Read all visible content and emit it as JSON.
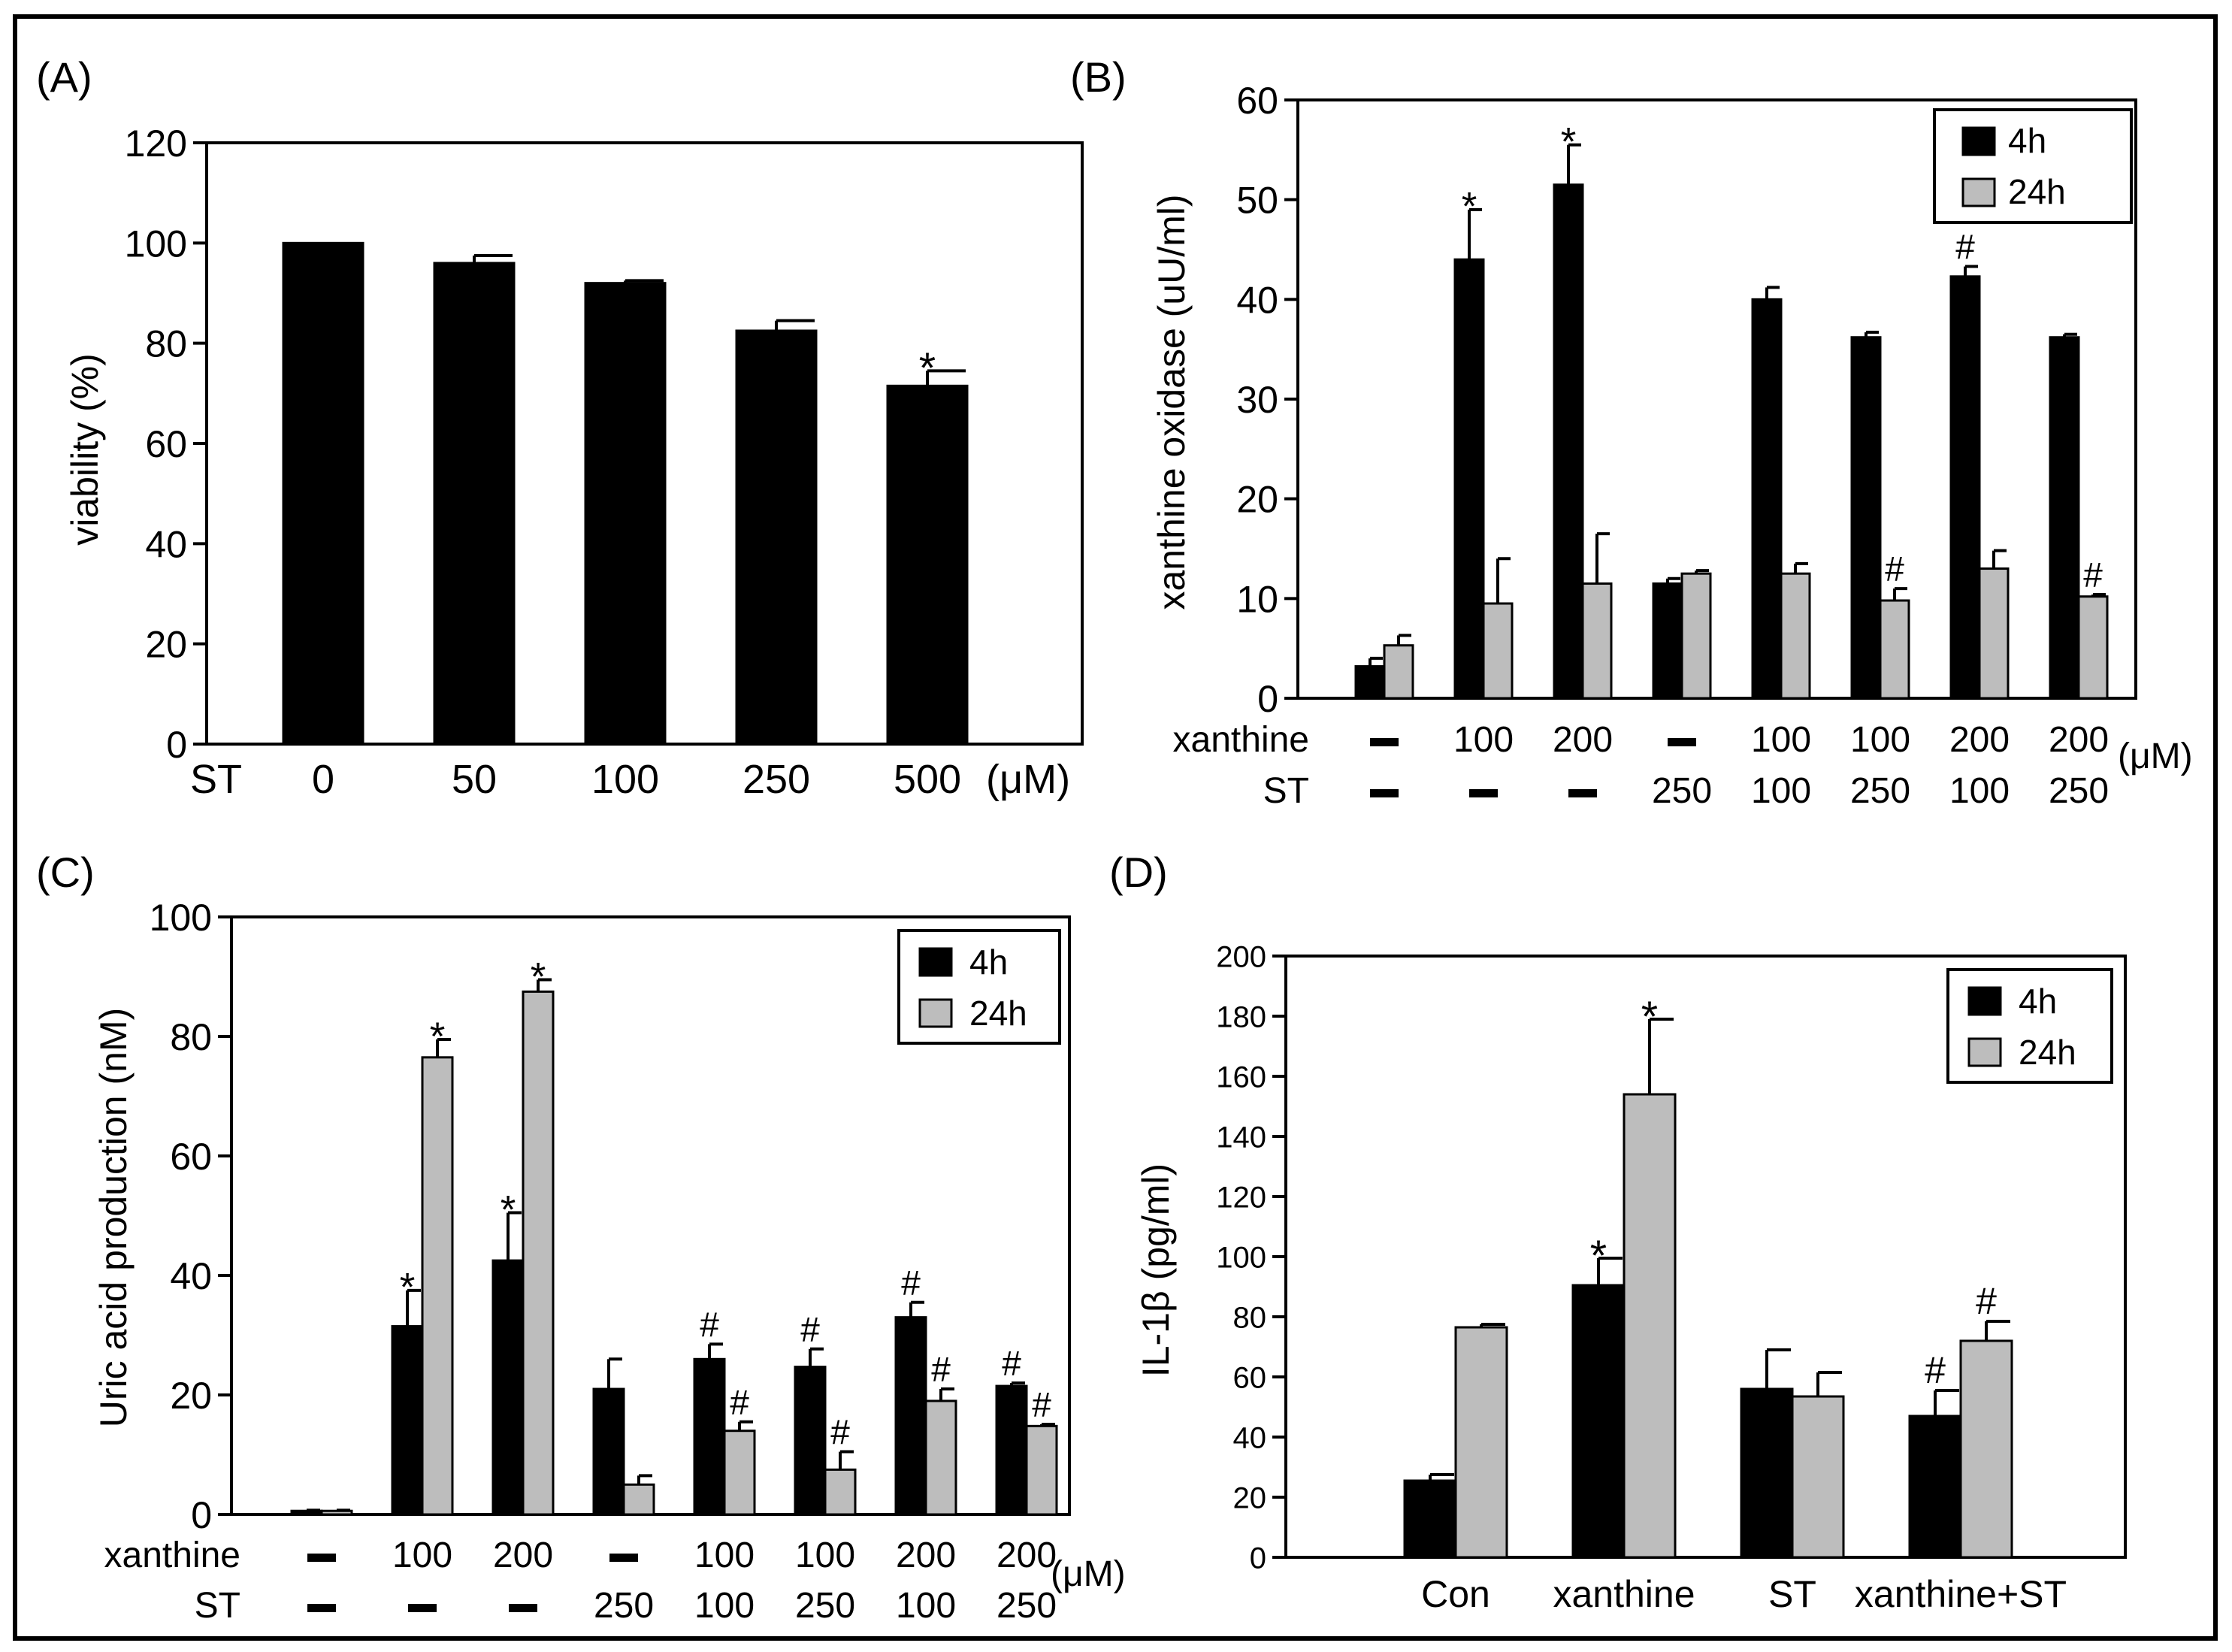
{
  "figure": {
    "panels": [
      "A",
      "B",
      "C",
      "D"
    ]
  },
  "colors": {
    "series_4h": "#000000",
    "series_24h": "#bdbdbd",
    "axis": "#000000",
    "background": "#ffffff"
  },
  "chart_data": [
    {
      "panel_label": "(A)",
      "type": "bar",
      "ylabel": "viability (%)",
      "ylim": [
        0,
        120
      ],
      "yticks": [
        "0",
        "20",
        "40",
        "60",
        "80",
        "100",
        "120"
      ],
      "row_label": "ST",
      "categories": [
        "0",
        "50",
        "100",
        "250",
        "500"
      ],
      "unit": "(μM)",
      "series": [
        {
          "name": "viability",
          "color": "#000000",
          "values": [
            100,
            96,
            92,
            82.5,
            71.5
          ],
          "errors": [
            0,
            1.5,
            0.5,
            2,
            3
          ],
          "marks": [
            "",
            "",
            "",
            "",
            "*"
          ]
        }
      ]
    },
    {
      "panel_label": "(B)",
      "type": "bar",
      "ylabel": "xanthine oxidase (uU/ml)",
      "ylim": [
        0,
        60
      ],
      "yticks": [
        "0",
        "10",
        "20",
        "30",
        "40",
        "50",
        "60"
      ],
      "legend": [
        "4h",
        "24h"
      ],
      "legend_position": "top-right",
      "row_labels": [
        "xanthine",
        "ST"
      ],
      "row_values": [
        [
          "–",
          "100",
          "200",
          "–",
          "100",
          "100",
          "200",
          "200"
        ],
        [
          "–",
          "–",
          "–",
          "250",
          "100",
          "250",
          "100",
          "250"
        ]
      ],
      "unit": "(μM)",
      "series": [
        {
          "name": "4h",
          "color": "#000000",
          "values": [
            3.2,
            44,
            51.5,
            11.5,
            40,
            36.2,
            42.3,
            36.2
          ],
          "errors": [
            0.8,
            5,
            4,
            0.5,
            1.2,
            0.5,
            1,
            0.3
          ],
          "marks": [
            "",
            "*",
            "*",
            "",
            "",
            "",
            "#",
            ""
          ]
        },
        {
          "name": "24h",
          "color": "#bdbdbd",
          "values": [
            5.3,
            9.5,
            11.5,
            12.5,
            12.5,
            9.8,
            13,
            10.2
          ],
          "errors": [
            1,
            4.5,
            5,
            0.3,
            1,
            1.2,
            1.8,
            0.2
          ],
          "marks": [
            "",
            "",
            "",
            "",
            "",
            "#",
            "",
            "#"
          ]
        }
      ]
    },
    {
      "panel_label": "(C)",
      "type": "bar",
      "ylabel": "Uric acid production (nM)",
      "ylim": [
        0,
        100
      ],
      "yticks": [
        "0",
        "20",
        "40",
        "60",
        "80",
        "100"
      ],
      "legend": [
        "4h",
        "24h"
      ],
      "legend_position": "top-right",
      "row_labels": [
        "xanthine",
        "ST"
      ],
      "row_values": [
        [
          "–",
          "100",
          "200",
          "–",
          "100",
          "100",
          "200",
          "200"
        ],
        [
          "–",
          "–",
          "–",
          "250",
          "100",
          "250",
          "100",
          "250"
        ]
      ],
      "unit": "(μM)",
      "series": [
        {
          "name": "4h",
          "color": "#000000",
          "values": [
            0.6,
            31.5,
            42.5,
            21,
            26,
            24.7,
            33,
            21.5
          ],
          "errors": [
            0.1,
            6,
            8,
            5,
            2.5,
            3,
            2.5,
            0.5
          ],
          "marks": [
            "",
            "*",
            "*",
            "",
            "#",
            "#",
            "#",
            "#"
          ]
        },
        {
          "name": "24h",
          "color": "#bdbdbd",
          "values": [
            0.6,
            76.5,
            87.5,
            5,
            14,
            7.5,
            19,
            14.8
          ],
          "errors": [
            0.1,
            3,
            2,
            1.5,
            1.5,
            3,
            2,
            0.3
          ],
          "marks": [
            "",
            "*",
            "*",
            "",
            "#",
            "#",
            "#",
            "#"
          ]
        }
      ]
    },
    {
      "panel_label": "(D)",
      "type": "bar",
      "ylabel": "IL-1β (pg/ml)",
      "ylim": [
        0,
        200
      ],
      "yticks": [
        "0",
        "20",
        "40",
        "60",
        "80",
        "100",
        "120",
        "140",
        "160",
        "180",
        "200"
      ],
      "legend": [
        "4h",
        "24h"
      ],
      "legend_position": "top-right",
      "categories": [
        "Con",
        "xanthine",
        "ST",
        "xanthine+ST"
      ],
      "series": [
        {
          "name": "4h",
          "color": "#000000",
          "values": [
            25.5,
            90.5,
            56,
            47
          ],
          "errors": [
            2,
            9,
            13,
            8.5
          ],
          "marks": [
            "",
            "*",
            "",
            "#"
          ]
        },
        {
          "name": "24h",
          "color": "#bdbdbd",
          "values": [
            76.5,
            154,
            53.5,
            72
          ],
          "errors": [
            1,
            25,
            8,
            6.5
          ],
          "marks": [
            "",
            "*",
            "",
            "#"
          ]
        }
      ]
    }
  ]
}
